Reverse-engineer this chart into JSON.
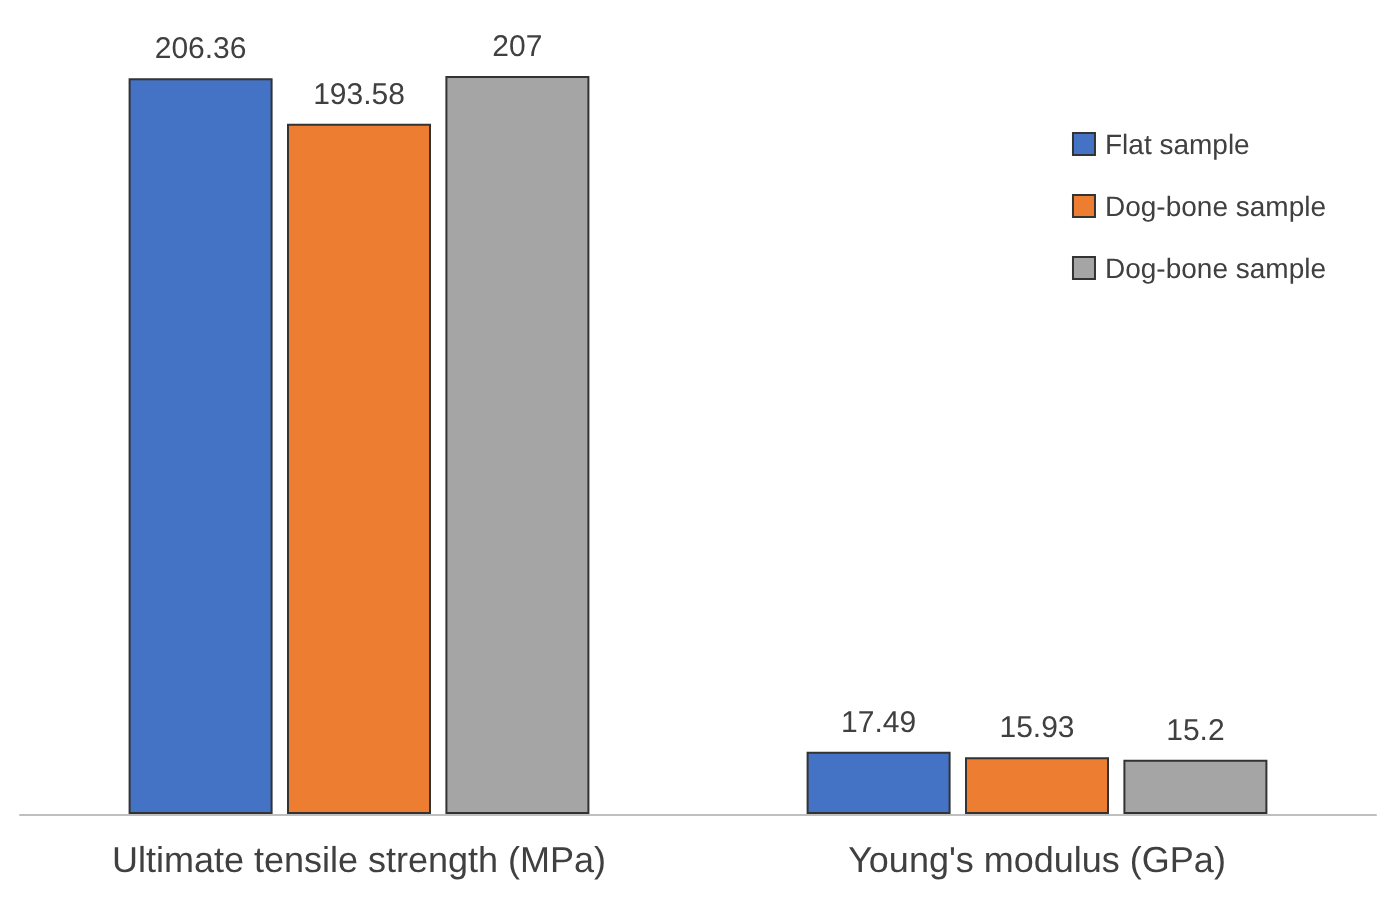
{
  "chart_data": {
    "type": "bar",
    "categories": [
      "Ultimate tensile strength (MPa)",
      "Young's modulus (GPa)"
    ],
    "series": [
      {
        "name": "Flat sample",
        "color": "#4472c4",
        "values": [
          206.36,
          17.49
        ]
      },
      {
        "name": "Dog-bone sample",
        "color": "#ed7d31",
        "values": [
          193.58,
          15.93
        ]
      },
      {
        "name": "Dog-bone sample",
        "color": "#a5a5a5",
        "values": [
          207,
          15.2
        ]
      }
    ],
    "data_labels": true,
    "legend": "top right"
  }
}
